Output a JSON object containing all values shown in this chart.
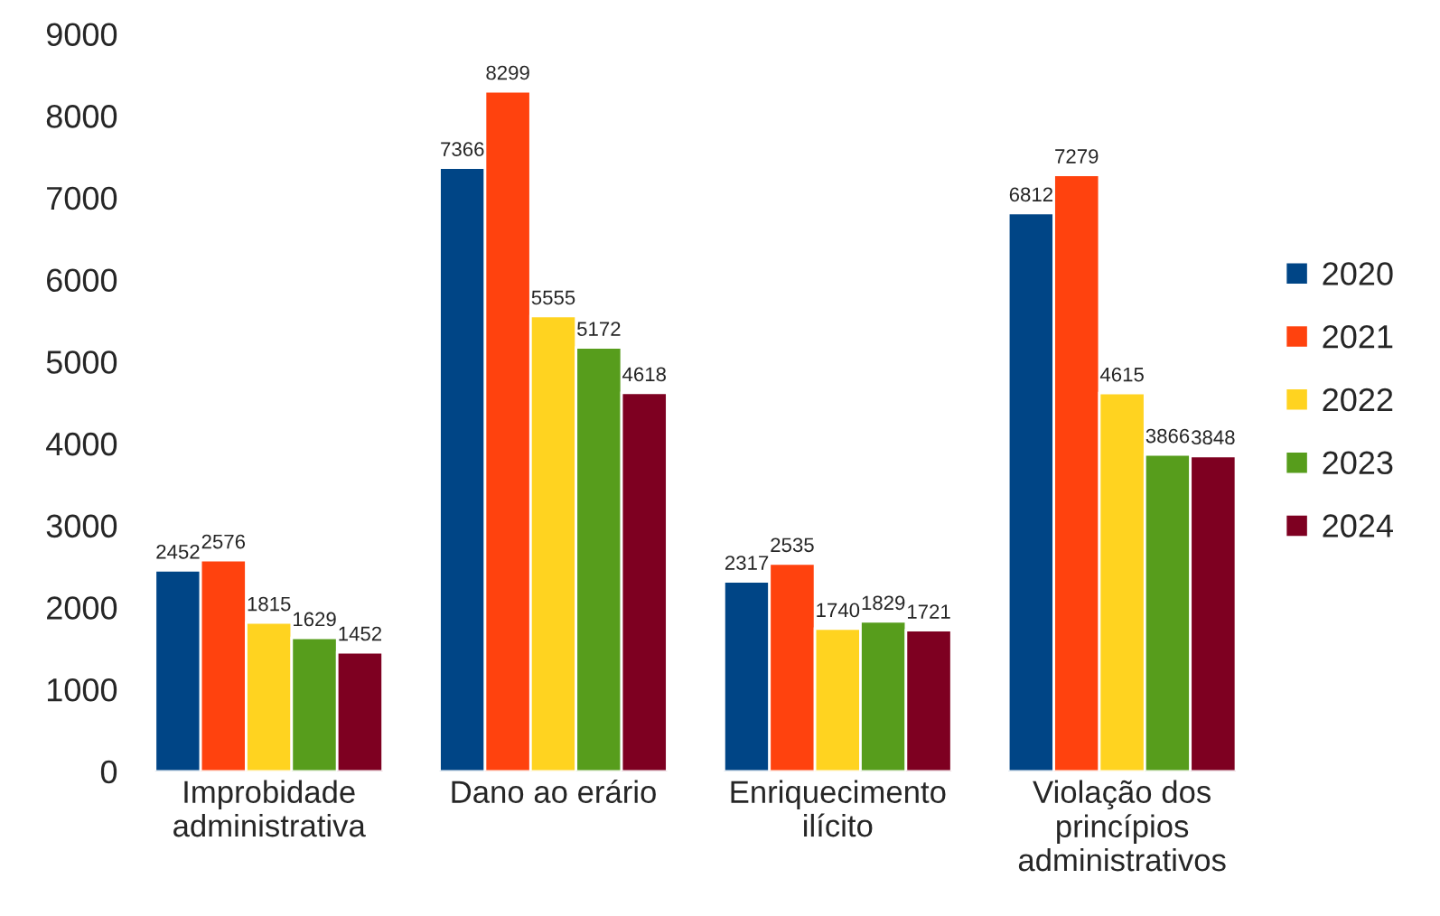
{
  "chart_data": {
    "type": "bar",
    "categories": [
      "Improbidade\nadministrativa",
      "Dano ao erário",
      "Enriquecimento\nilícito",
      "Violação dos\nprincípios\nadministrativos"
    ],
    "series": [
      {
        "name": "2020",
        "color": "#004586",
        "values": [
          2452,
          7366,
          2317,
          6812
        ]
      },
      {
        "name": "2021",
        "color": "#ff420e",
        "values": [
          2576,
          8299,
          2535,
          7279
        ]
      },
      {
        "name": "2022",
        "color": "#ffd320",
        "values": [
          1815,
          5555,
          1740,
          4615
        ]
      },
      {
        "name": "2023",
        "color": "#579d1c",
        "values": [
          1629,
          5172,
          1829,
          3866
        ]
      },
      {
        "name": "2024",
        "color": "#7e0021",
        "values": [
          1452,
          4618,
          1721,
          3848
        ]
      }
    ],
    "ylim": [
      0,
      9000
    ],
    "yticks": [
      0,
      1000,
      2000,
      3000,
      4000,
      5000,
      6000,
      7000,
      8000,
      9000
    ],
    "data_labels": true,
    "grid": false,
    "legend": "right"
  }
}
